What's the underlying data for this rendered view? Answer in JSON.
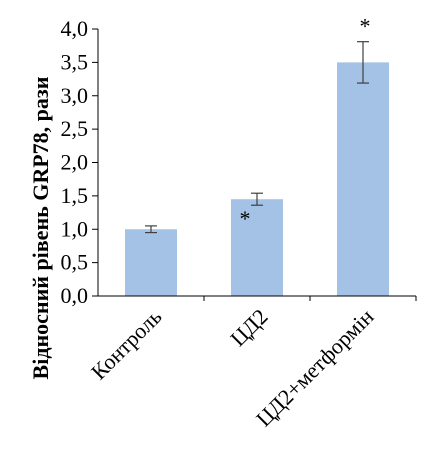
{
  "chart_data": {
    "type": "bar",
    "ylabel": "Відносний рівень GRP78, рази",
    "ylim": [
      0,
      4
    ],
    "yticks": [
      "0,0",
      "0,5",
      "1,0",
      "1,5",
      "2,0",
      "2,5",
      "3,0",
      "3,5",
      "4,0"
    ],
    "categories": [
      "Контроль",
      "ЦД2",
      "ЦД2+метформін"
    ],
    "values": [
      1.0,
      1.45,
      3.5
    ],
    "errors": [
      0.05,
      0.09,
      0.31
    ],
    "annotations": [
      "",
      "*",
      "*"
    ],
    "bar_color": "#a4c2e6",
    "grid": false
  }
}
